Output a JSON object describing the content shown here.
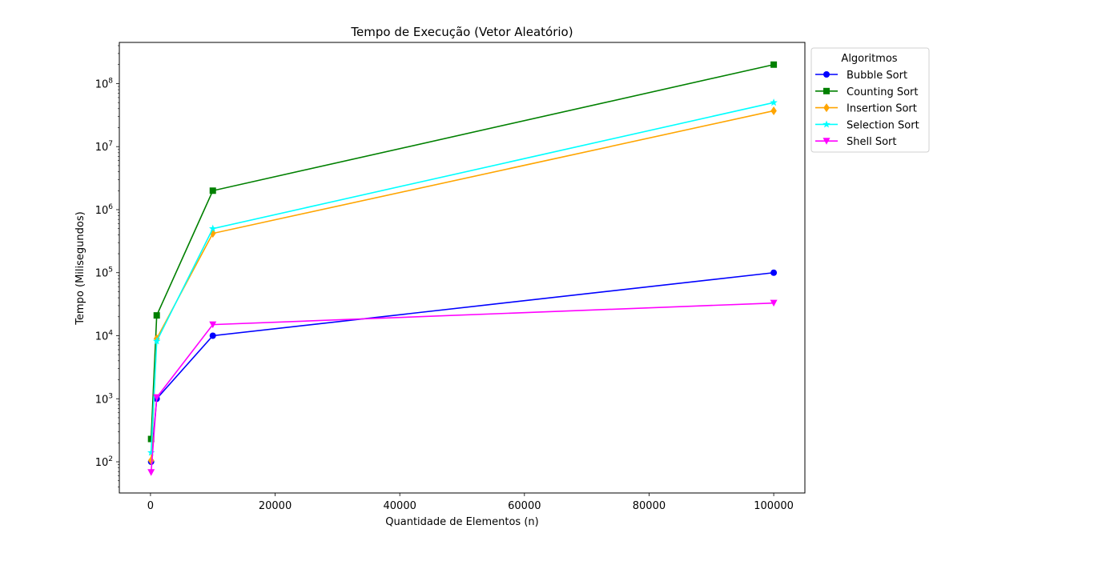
{
  "chart_data": {
    "type": "line",
    "title": "Tempo de Execução (Vetor Aleatório)",
    "xlabel": "Quantidade de Elementos (n)",
    "ylabel": "Tempo (Milisegundos)",
    "xscale": "linear",
    "yscale": "log",
    "xlim": [
      -5000,
      105000
    ],
    "ylim": [
      32,
      450000000
    ],
    "x_ticks": [
      0,
      20000,
      40000,
      60000,
      80000,
      100000
    ],
    "x_tick_labels": [
      "0",
      "20000",
      "40000",
      "60000",
      "80000",
      "100000"
    ],
    "y_ticks": [
      100,
      1000,
      10000,
      100000,
      1000000,
      10000000,
      100000000
    ],
    "y_tick_labels": [
      {
        "base": "10",
        "exp": "2"
      },
      {
        "base": "10",
        "exp": "3"
      },
      {
        "base": "10",
        "exp": "4"
      },
      {
        "base": "10",
        "exp": "5"
      },
      {
        "base": "10",
        "exp": "6"
      },
      {
        "base": "10",
        "exp": "7"
      },
      {
        "base": "10",
        "exp": "8"
      }
    ],
    "grid": false,
    "legend_title": "Algoritmos",
    "legend_position": "outside top-right",
    "x": [
      100,
      1000,
      10000,
      100000
    ],
    "series": [
      {
        "name": "Bubble Sort",
        "color": "#0000ff",
        "marker": "circle",
        "values": [
          100,
          1000,
          10000,
          100000
        ]
      },
      {
        "name": "Counting Sort",
        "color": "#008000",
        "marker": "square",
        "values": [
          230,
          21000,
          2000000,
          200000000
        ]
      },
      {
        "name": "Insertion Sort",
        "color": "#ffa500",
        "marker": "diamond",
        "values": [
          105,
          9000,
          420000,
          37000000
        ]
      },
      {
        "name": "Selection Sort",
        "color": "#00ffff",
        "marker": "star",
        "values": [
          140,
          8200,
          500000,
          50000000
        ]
      },
      {
        "name": "Shell Sort",
        "color": "#ff00ff",
        "marker": "triangle-down",
        "values": [
          68,
          1050,
          15000,
          33000
        ]
      }
    ]
  }
}
